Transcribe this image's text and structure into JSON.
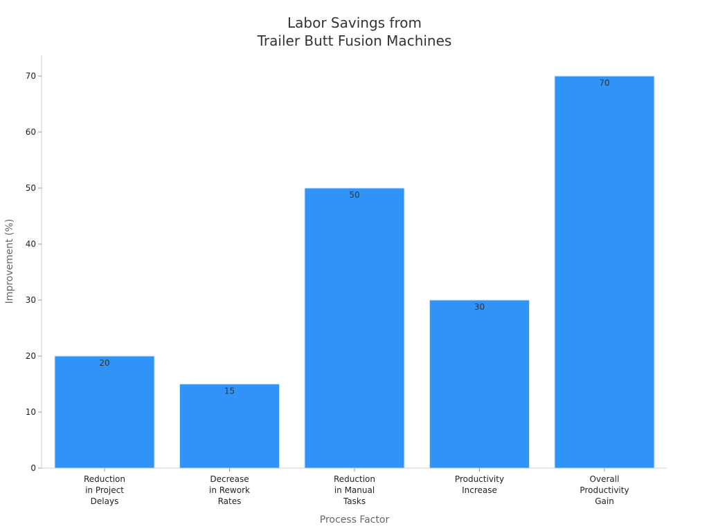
{
  "chart_data": {
    "type": "bar",
    "title_lines": [
      "Labor Savings from",
      "Trailer Butt Fusion Machines"
    ],
    "xlabel": "Process Factor",
    "ylabel": "Improvement (%)",
    "categories": [
      [
        "Reduction",
        "in Project",
        "Delays"
      ],
      [
        "Decrease",
        "in Rework",
        "Rates"
      ],
      [
        "Reduction",
        "in Manual",
        "Tasks"
      ],
      [
        "Productivity",
        "Increase"
      ],
      [
        "Overall",
        "Productivity",
        "Gain"
      ]
    ],
    "values": [
      20,
      15,
      50,
      30,
      70
    ],
    "ylim": [
      0,
      70
    ],
    "yticks": [
      0,
      10,
      20,
      30,
      40,
      50,
      60,
      70
    ],
    "grid": false,
    "legend": "none",
    "bar_color": "#2f93f8"
  }
}
